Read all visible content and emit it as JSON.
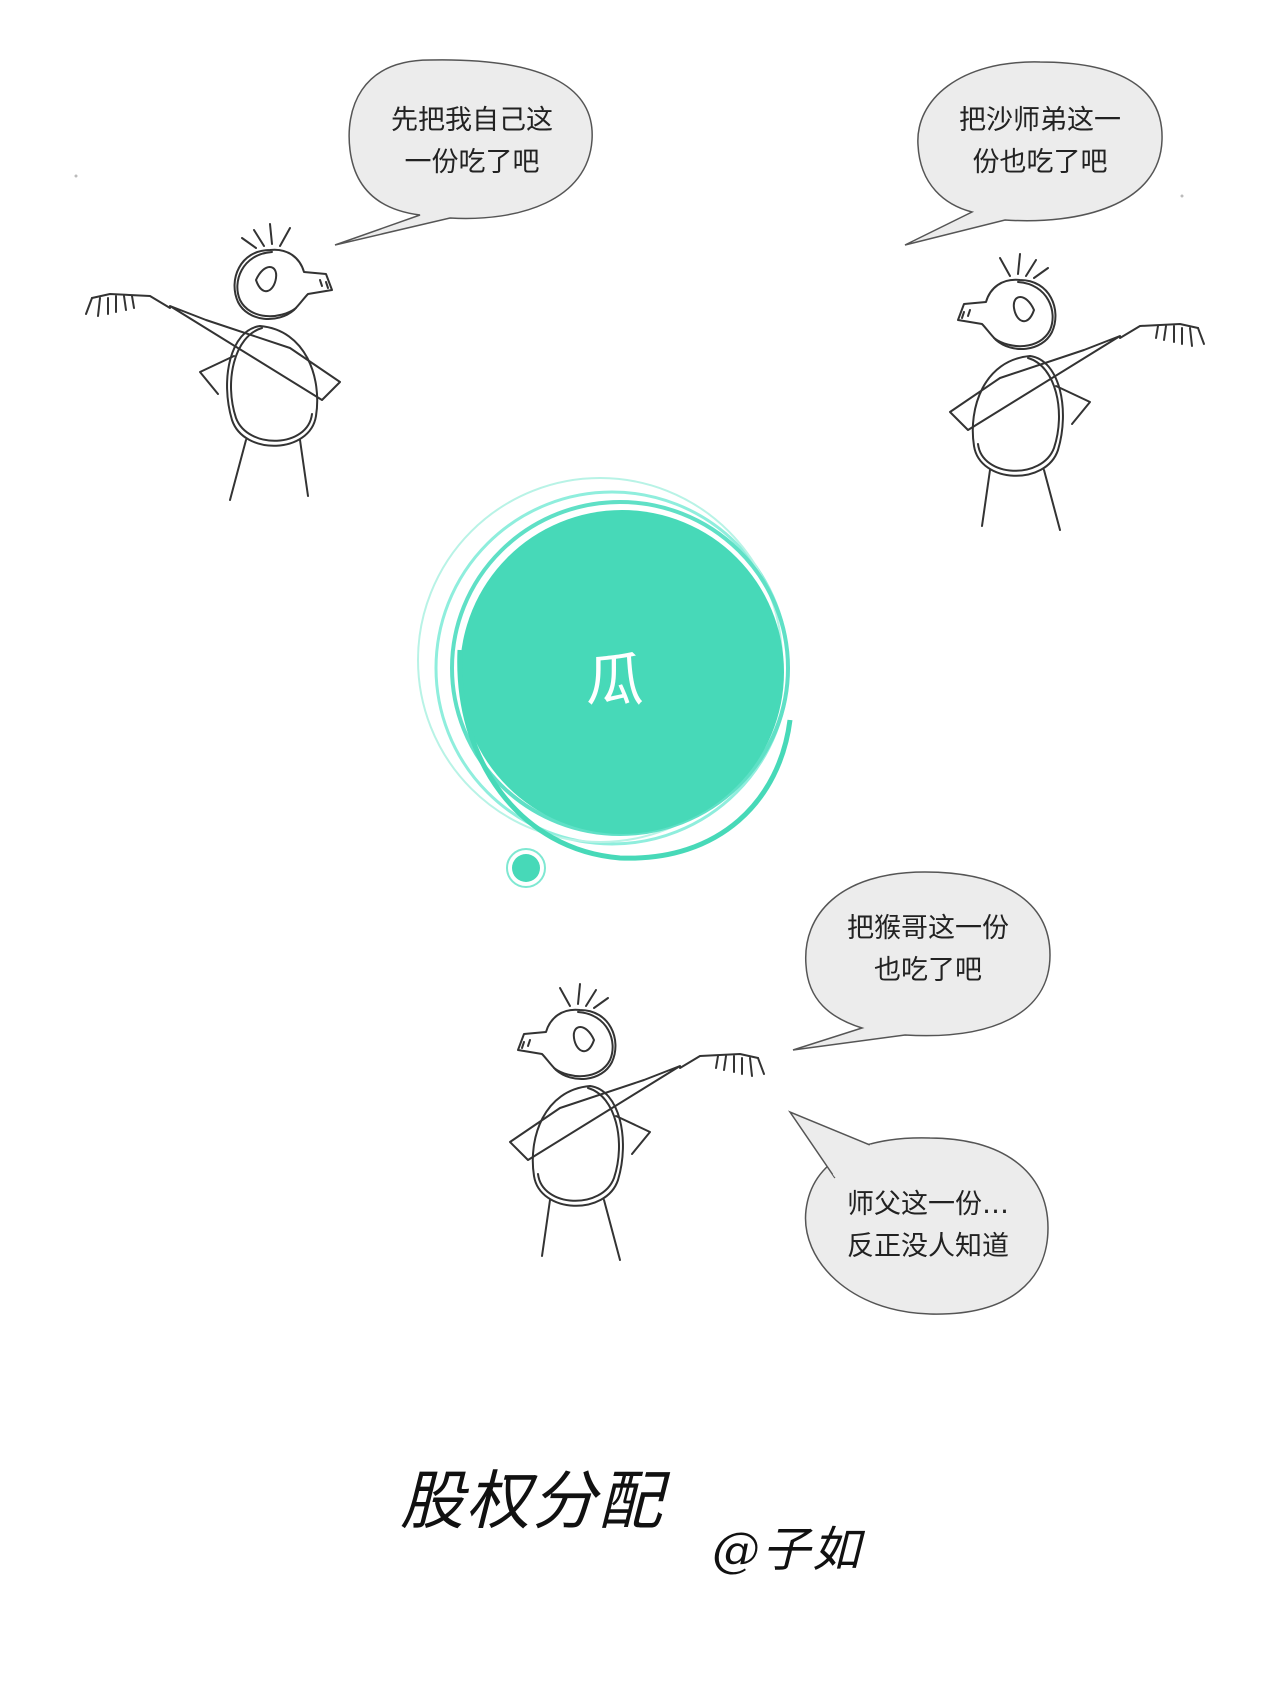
{
  "bubbles": {
    "top_left": {
      "line1": "先把我自己这",
      "line2": "一份吃了吧"
    },
    "top_right": {
      "line1": "把沙师弟这一",
      "line2": "份也吃了吧"
    },
    "middle": {
      "line1": "把猴哥这一份",
      "line2": "也吃了吧"
    },
    "bottom": {
      "line1": "师父这一份…",
      "line2": "反正没人知道"
    }
  },
  "melon": {
    "label": "瓜",
    "color": "#47d9b8"
  },
  "signature": {
    "title": "股权分配",
    "author": "@子如"
  },
  "colors": {
    "bubble_fill": "#ececec",
    "bubble_stroke": "#555555",
    "pencil": "#333333"
  }
}
